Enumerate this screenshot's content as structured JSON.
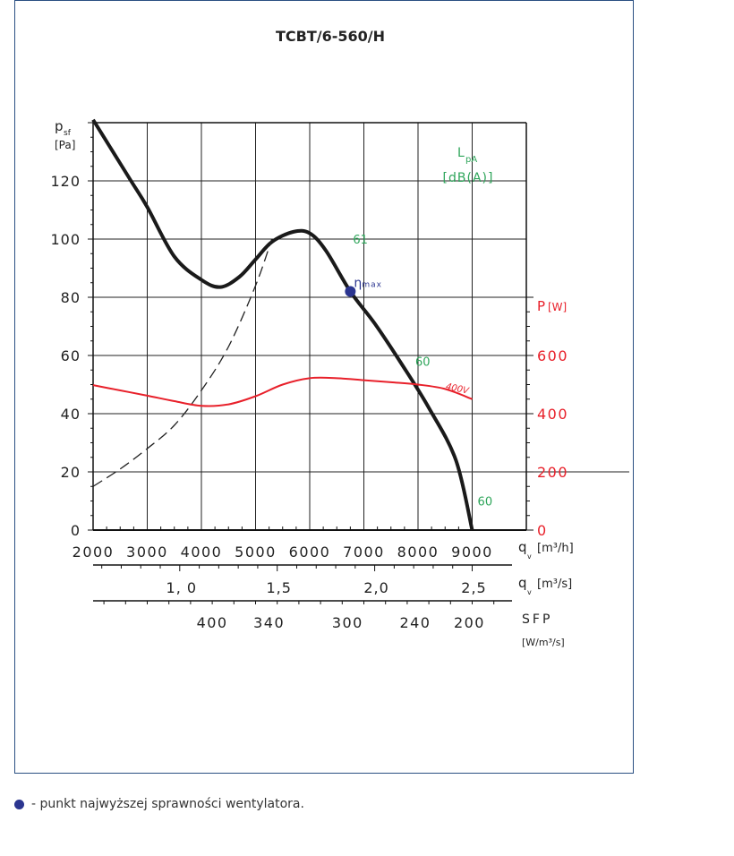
{
  "colors": {
    "frame": "#2a4f82",
    "pressure": "#1a1a1a",
    "power": "#e8202a",
    "noise": "#2ea55a",
    "eta": "#2b3590"
  },
  "chart_data": {
    "type": "line",
    "title": "TCBT/6-560/H",
    "left_axis": {
      "symbol": "p",
      "sub": "sf",
      "unit": "[Pa]",
      "ylim": [
        0,
        140
      ],
      "ticks": [
        "0",
        "20",
        "40",
        "60",
        "80",
        "100",
        "120"
      ]
    },
    "right_axis": {
      "symbol": "P",
      "unit": "[W]",
      "ylim": [
        0,
        1400
      ],
      "ticks": [
        "0",
        "200",
        "400",
        "600"
      ]
    },
    "x_axis": {
      "symbol": "q",
      "sub": "v",
      "unit": "[m³/h]",
      "xlim": [
        2000,
        9000
      ],
      "ticks": [
        "2000",
        "3000",
        "4000",
        "5000",
        "6000",
        "7000",
        "8000",
        "9000"
      ]
    },
    "x_axis_m3s": {
      "symbol": "q",
      "sub": "v",
      "unit": "[m³/s]",
      "ticks": [
        {
          "label": "1, 0",
          "v": 1.0
        },
        {
          "label": "1,5",
          "v": 1.5
        },
        {
          "label": "2,0",
          "v": 2.0
        },
        {
          "label": "2,5",
          "v": 2.5
        }
      ]
    },
    "x_axis_sfp": {
      "label": "SFP",
      "unit": "[W/m³/s]",
      "ticks": [
        {
          "label": "400",
          "q": 4200
        },
        {
          "label": "340",
          "q": 5250
        },
        {
          "label": "300",
          "q": 6700
        },
        {
          "label": "240",
          "q": 7950
        },
        {
          "label": "200",
          "q": 8950
        }
      ]
    },
    "noise_label": {
      "symbol": "L",
      "sub": "pA",
      "unit": "[dB(A)]"
    },
    "series": [
      {
        "role": "pressure",
        "x": [
          2000,
          2300,
          2700,
          3000,
          3500,
          4000,
          4350,
          4700,
          5000,
          5300,
          5700,
          6000,
          6300,
          6750,
          7200,
          7700,
          8200,
          8700,
          9000
        ],
        "y": [
          141,
          132,
          120,
          111,
          94,
          86,
          83.5,
          87,
          93,
          99,
          102.5,
          102,
          96,
          82,
          71,
          57,
          42,
          24,
          0
        ]
      },
      {
        "role": "system-curve",
        "x": [
          2000,
          2500,
          3000,
          3500,
          4000,
          4500,
          5000,
          5300
        ],
        "y": [
          15,
          21,
          28,
          36,
          48,
          63,
          84,
          100
        ]
      },
      {
        "name": "400V",
        "role": "power",
        "x": [
          2000,
          2500,
          3000,
          3500,
          4000,
          4500,
          5000,
          5500,
          6000,
          6500,
          7000,
          7500,
          8000,
          8500,
          9000
        ],
        "y": [
          498,
          480,
          462,
          443,
          427,
          432,
          460,
          500,
          522,
          522,
          515,
          508,
          500,
          485,
          450
        ]
      }
    ],
    "eta_max": {
      "x": 6750,
      "y": 82,
      "label": "η",
      "sub": "max"
    },
    "noise_points": [
      {
        "x": 6800,
        "y": 96,
        "label": "61"
      },
      {
        "x": 7950,
        "y": 54,
        "label": "60"
      },
      {
        "x": 9100,
        "y": 6,
        "label": "60"
      }
    ],
    "grid": true
  },
  "footnote": "- punkt najwyższej sprawności wentylatora."
}
